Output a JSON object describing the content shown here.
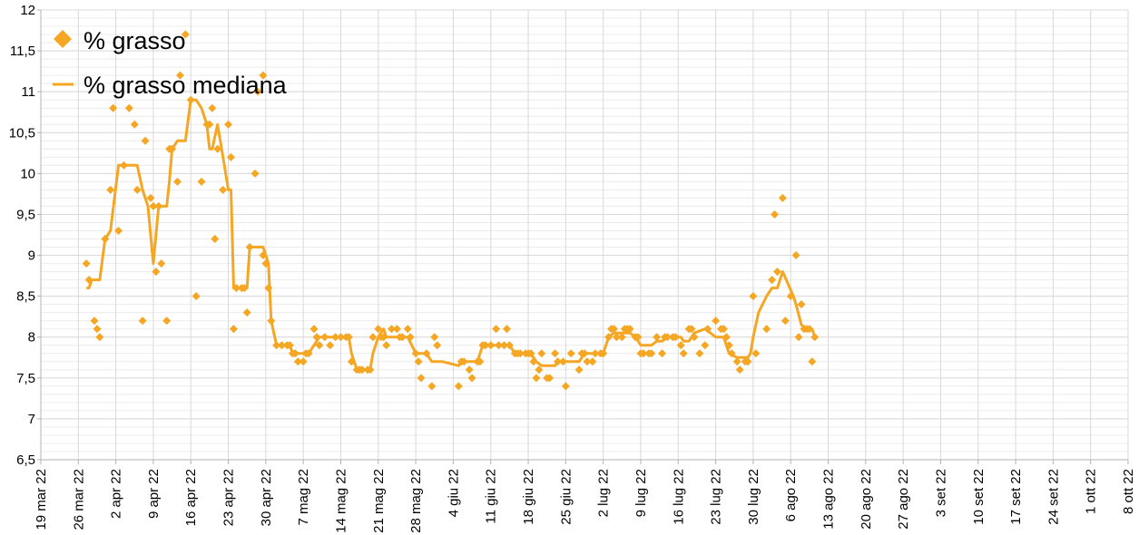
{
  "chart_data": {
    "type": "scatter",
    "start_date": "2022-03-19",
    "ylim": [
      6.5,
      12
    ],
    "y_ticks": [
      "6,5",
      "7",
      "7,5",
      "8",
      "8,5",
      "9",
      "9,5",
      "10",
      "10,5",
      "11",
      "11,5",
      "12"
    ],
    "x_ticks": [
      "19 mar 22",
      "26 mar 22",
      "2 apr 22",
      "9 apr 22",
      "16 apr 22",
      "23 apr 22",
      "30 apr 22",
      "7 mag 22",
      "14 mag 22",
      "21 mag 22",
      "28 mag 22",
      "4 giu 22",
      "11 giu 22",
      "18 giu 22",
      "25 giu 22",
      "2 lug 22",
      "9 lug 22",
      "16 lug 22",
      "23 lug 22",
      "30 lug 22",
      "6 ago 22",
      "13 ago 22",
      "20 ago 22",
      "27 ago 22",
      "3 set 22",
      "10 set 22",
      "17 set 22",
      "24 set 22",
      "1 ott 22",
      "8 ott 22"
    ],
    "grid": true,
    "legend_position": "top-left",
    "colors": {
      "series": "#F5A623",
      "grid": "#d9d9d9",
      "axis": "#b3b3b3"
    },
    "series": [
      {
        "name": "% grasso",
        "marker": "diamond",
        "points": [
          [
            8.5,
            8.9
          ],
          [
            9,
            8.7
          ],
          [
            10,
            8.2
          ],
          [
            10.5,
            8.1
          ],
          [
            11,
            8.0
          ],
          [
            12,
            9.2
          ],
          [
            13,
            9.8
          ],
          [
            13.5,
            10.8
          ],
          [
            14.5,
            9.3
          ],
          [
            15.5,
            10.1
          ],
          [
            16.5,
            10.8
          ],
          [
            17.5,
            10.6
          ],
          [
            18,
            9.8
          ],
          [
            19,
            8.2
          ],
          [
            19.5,
            10.4
          ],
          [
            20.5,
            9.7
          ],
          [
            21,
            9.6
          ],
          [
            21.5,
            8.8
          ],
          [
            22,
            9.6
          ],
          [
            22.5,
            8.9
          ],
          [
            23.5,
            8.2
          ],
          [
            24,
            10.3
          ],
          [
            24.5,
            10.3
          ],
          [
            25.5,
            9.9
          ],
          [
            26,
            11.2
          ],
          [
            27,
            11.7
          ],
          [
            28,
            10.9
          ],
          [
            29,
            8.5
          ],
          [
            30,
            9.9
          ],
          [
            31,
            10.6
          ],
          [
            31.5,
            10.6
          ],
          [
            32,
            10.8
          ],
          [
            32.5,
            9.2
          ],
          [
            33,
            10.3
          ],
          [
            34,
            9.8
          ],
          [
            35,
            10.6
          ],
          [
            35.5,
            10.2
          ],
          [
            36,
            8.1
          ],
          [
            36.5,
            8.6
          ],
          [
            37.5,
            8.6
          ],
          [
            38,
            8.6
          ],
          [
            38.5,
            8.3
          ],
          [
            39,
            9.1
          ],
          [
            40,
            10.0
          ],
          [
            40.5,
            11.0
          ],
          [
            41.5,
            11.2
          ],
          [
            41.5,
            9.0
          ],
          [
            42,
            8.9
          ],
          [
            42.5,
            8.6
          ],
          [
            43,
            8.2
          ],
          [
            44,
            7.9
          ],
          [
            45,
            7.9
          ],
          [
            46,
            7.9
          ],
          [
            46.5,
            7.9
          ],
          [
            47,
            7.8
          ],
          [
            47.5,
            7.8
          ],
          [
            48,
            7.7
          ],
          [
            49,
            7.7
          ],
          [
            49.5,
            7.8
          ],
          [
            50,
            7.8
          ],
          [
            51,
            8.1
          ],
          [
            51.5,
            8.0
          ],
          [
            52,
            7.9
          ],
          [
            53,
            8.0
          ],
          [
            54,
            7.9
          ],
          [
            55,
            8.0
          ],
          [
            56,
            8.0
          ],
          [
            57,
            8.0
          ],
          [
            57.5,
            8.0
          ],
          [
            58,
            7.7
          ],
          [
            59,
            7.6
          ],
          [
            59.5,
            7.6
          ],
          [
            60,
            7.6
          ],
          [
            61,
            7.6
          ],
          [
            61.5,
            7.6
          ],
          [
            62,
            8.0
          ],
          [
            63,
            8.1
          ],
          [
            63.5,
            8.0
          ],
          [
            64,
            8.0
          ],
          [
            64.5,
            7.9
          ],
          [
            65.5,
            8.1
          ],
          [
            66.5,
            8.1
          ],
          [
            67,
            8.0
          ],
          [
            67.5,
            8.0
          ],
          [
            68.5,
            8.1
          ],
          [
            69,
            8.0
          ],
          [
            70,
            7.8
          ],
          [
            70.5,
            7.7
          ],
          [
            71,
            7.5
          ],
          [
            72,
            7.8
          ],
          [
            73,
            7.4
          ],
          [
            73.5,
            8.0
          ],
          [
            74,
            7.9
          ],
          [
            78,
            7.4
          ],
          [
            78.5,
            7.7
          ],
          [
            79,
            7.7
          ],
          [
            80,
            7.6
          ],
          [
            80.5,
            7.5
          ],
          [
            81.5,
            7.7
          ],
          [
            82,
            7.7
          ],
          [
            82.5,
            7.9
          ],
          [
            83,
            7.9
          ],
          [
            84,
            7.9
          ],
          [
            85,
            8.1
          ],
          [
            85.5,
            7.9
          ],
          [
            86.5,
            7.9
          ],
          [
            87,
            8.1
          ],
          [
            87.5,
            7.9
          ],
          [
            88.5,
            7.8
          ],
          [
            89,
            7.8
          ],
          [
            89.5,
            7.8
          ],
          [
            90.5,
            7.8
          ],
          [
            91,
            7.8
          ],
          [
            91.5,
            7.8
          ],
          [
            92,
            7.7
          ],
          [
            92.5,
            7.5
          ],
          [
            93,
            7.6
          ],
          [
            93.5,
            7.8
          ],
          [
            94.5,
            7.5
          ],
          [
            95,
            7.5
          ],
          [
            96,
            7.8
          ],
          [
            96.5,
            7.7
          ],
          [
            97.5,
            7.7
          ],
          [
            98,
            7.4
          ],
          [
            99,
            7.8
          ],
          [
            100.5,
            7.6
          ],
          [
            101,
            7.8
          ],
          [
            101.5,
            7.8
          ],
          [
            102,
            7.7
          ],
          [
            103,
            7.7
          ],
          [
            103.5,
            7.8
          ],
          [
            104.5,
            7.8
          ],
          [
            105,
            7.8
          ],
          [
            106,
            8.0
          ],
          [
            106.5,
            8.1
          ],
          [
            107,
            8.1
          ],
          [
            107.5,
            8.0
          ],
          [
            108.5,
            8.0
          ],
          [
            109,
            8.1
          ],
          [
            109.5,
            8.1
          ],
          [
            110,
            8.1
          ],
          [
            111,
            8.0
          ],
          [
            111.5,
            8.0
          ],
          [
            112,
            7.8
          ],
          [
            112.5,
            7.8
          ],
          [
            113.5,
            7.8
          ],
          [
            114,
            7.8
          ],
          [
            115,
            8.0
          ],
          [
            116,
            7.8
          ],
          [
            116.5,
            8.0
          ],
          [
            117,
            8.0
          ],
          [
            118,
            8.0
          ],
          [
            118.5,
            8.0
          ],
          [
            119.5,
            7.9
          ],
          [
            120,
            7.8
          ],
          [
            121,
            8.1
          ],
          [
            121.5,
            8.1
          ],
          [
            122,
            8.0
          ],
          [
            123,
            7.8
          ],
          [
            124,
            7.9
          ],
          [
            124.5,
            8.1
          ],
          [
            126,
            8.2
          ],
          [
            127,
            8.1
          ],
          [
            127.5,
            8.1
          ],
          [
            128,
            8.0
          ],
          [
            128.5,
            7.9
          ],
          [
            129,
            7.8
          ],
          [
            130,
            7.7
          ],
          [
            130.5,
            7.6
          ],
          [
            131.5,
            7.7
          ],
          [
            132,
            7.7
          ],
          [
            133,
            8.5
          ],
          [
            133.5,
            7.8
          ],
          [
            135.5,
            8.1
          ],
          [
            136.5,
            8.7
          ],
          [
            137,
            9.5
          ],
          [
            137.5,
            8.8
          ],
          [
            138.5,
            9.7
          ],
          [
            139,
            8.2
          ],
          [
            140,
            8.5
          ],
          [
            141,
            9.0
          ],
          [
            141.5,
            8.0
          ],
          [
            142,
            8.4
          ],
          [
            142.5,
            8.1
          ],
          [
            143,
            8.1
          ],
          [
            143.5,
            8.1
          ],
          [
            144,
            7.7
          ],
          [
            144.5,
            8.0
          ]
        ]
      },
      {
        "name": "% grasso mediana",
        "marker": "line",
        "points": [
          [
            8.5,
            8.6
          ],
          [
            9,
            8.6
          ],
          [
            9.5,
            8.7
          ],
          [
            11,
            8.7
          ],
          [
            12,
            9.2
          ],
          [
            13,
            9.3
          ],
          [
            14.5,
            10.1
          ],
          [
            15.5,
            10.1
          ],
          [
            16.5,
            10.1
          ],
          [
            17.5,
            10.1
          ],
          [
            18,
            10.1
          ],
          [
            19,
            9.8
          ],
          [
            20,
            9.6
          ],
          [
            21,
            8.9
          ],
          [
            22,
            9.6
          ],
          [
            23.5,
            9.6
          ],
          [
            24,
            9.9
          ],
          [
            24.5,
            10.3
          ],
          [
            25.5,
            10.4
          ],
          [
            26.5,
            10.4
          ],
          [
            27,
            10.4
          ],
          [
            28,
            10.9
          ],
          [
            29,
            10.9
          ],
          [
            30,
            10.8
          ],
          [
            31,
            10.6
          ],
          [
            31.5,
            10.3
          ],
          [
            32,
            10.3
          ],
          [
            33,
            10.6
          ],
          [
            34,
            10.2
          ],
          [
            35,
            9.8
          ],
          [
            35.5,
            9.8
          ],
          [
            36,
            8.6
          ],
          [
            37,
            8.6
          ],
          [
            38,
            8.6
          ],
          [
            38.5,
            8.6
          ],
          [
            39,
            9.1
          ],
          [
            40,
            9.1
          ],
          [
            41.5,
            9.1
          ],
          [
            42,
            9.0
          ],
          [
            42.5,
            8.9
          ],
          [
            43,
            8.2
          ],
          [
            44,
            7.9
          ],
          [
            46.5,
            7.9
          ],
          [
            47,
            7.8
          ],
          [
            49,
            7.8
          ],
          [
            50,
            7.8
          ],
          [
            52,
            8.0
          ],
          [
            56.5,
            8.0
          ],
          [
            57.5,
            8.0
          ],
          [
            58,
            7.8
          ],
          [
            59,
            7.6
          ],
          [
            61.5,
            7.6
          ],
          [
            62,
            7.8
          ],
          [
            63,
            8.0
          ],
          [
            64,
            8.1
          ],
          [
            64.5,
            8.0
          ],
          [
            65.5,
            8.0
          ],
          [
            66.5,
            8.0
          ],
          [
            67.5,
            8.0
          ],
          [
            68.5,
            8.0
          ],
          [
            70,
            7.8
          ],
          [
            71,
            7.8
          ],
          [
            72,
            7.8
          ],
          [
            73,
            7.7
          ],
          [
            75,
            7.7
          ],
          [
            78,
            7.65
          ],
          [
            78.5,
            7.7
          ],
          [
            79,
            7.7
          ],
          [
            80,
            7.7
          ],
          [
            80.5,
            7.7
          ],
          [
            81.5,
            7.7
          ],
          [
            82.5,
            7.9
          ],
          [
            84,
            7.9
          ],
          [
            87.5,
            7.9
          ],
          [
            88.5,
            7.8
          ],
          [
            91.5,
            7.8
          ],
          [
            92.5,
            7.7
          ],
          [
            93.5,
            7.65
          ],
          [
            96,
            7.65
          ],
          [
            96.5,
            7.7
          ],
          [
            99,
            7.7
          ],
          [
            100.5,
            7.7
          ],
          [
            101.5,
            7.8
          ],
          [
            104.5,
            7.8
          ],
          [
            105,
            7.8
          ],
          [
            106,
            8.0
          ],
          [
            107,
            8.05
          ],
          [
            108.5,
            8.05
          ],
          [
            110,
            8.05
          ],
          [
            111,
            8.0
          ],
          [
            112,
            7.9
          ],
          [
            114,
            7.9
          ],
          [
            115,
            7.95
          ],
          [
            116,
            7.95
          ],
          [
            117,
            8.0
          ],
          [
            118,
            8.0
          ],
          [
            119.5,
            8.0
          ],
          [
            120,
            7.95
          ],
          [
            121,
            7.95
          ],
          [
            122,
            8.05
          ],
          [
            124,
            8.1
          ],
          [
            126,
            8.0
          ],
          [
            127.5,
            8.0
          ],
          [
            128.5,
            7.8
          ],
          [
            130,
            7.75
          ],
          [
            132,
            7.75
          ],
          [
            132.5,
            7.8
          ],
          [
            133,
            8.0
          ],
          [
            134,
            8.3
          ],
          [
            135.5,
            8.5
          ],
          [
            136.5,
            8.6
          ],
          [
            137.5,
            8.6
          ],
          [
            138.5,
            8.8
          ],
          [
            140.5,
            8.5
          ],
          [
            141,
            8.4
          ],
          [
            142,
            8.15
          ],
          [
            143,
            8.1
          ],
          [
            144,
            8.1
          ],
          [
            144.5,
            8.0
          ]
        ]
      }
    ]
  }
}
